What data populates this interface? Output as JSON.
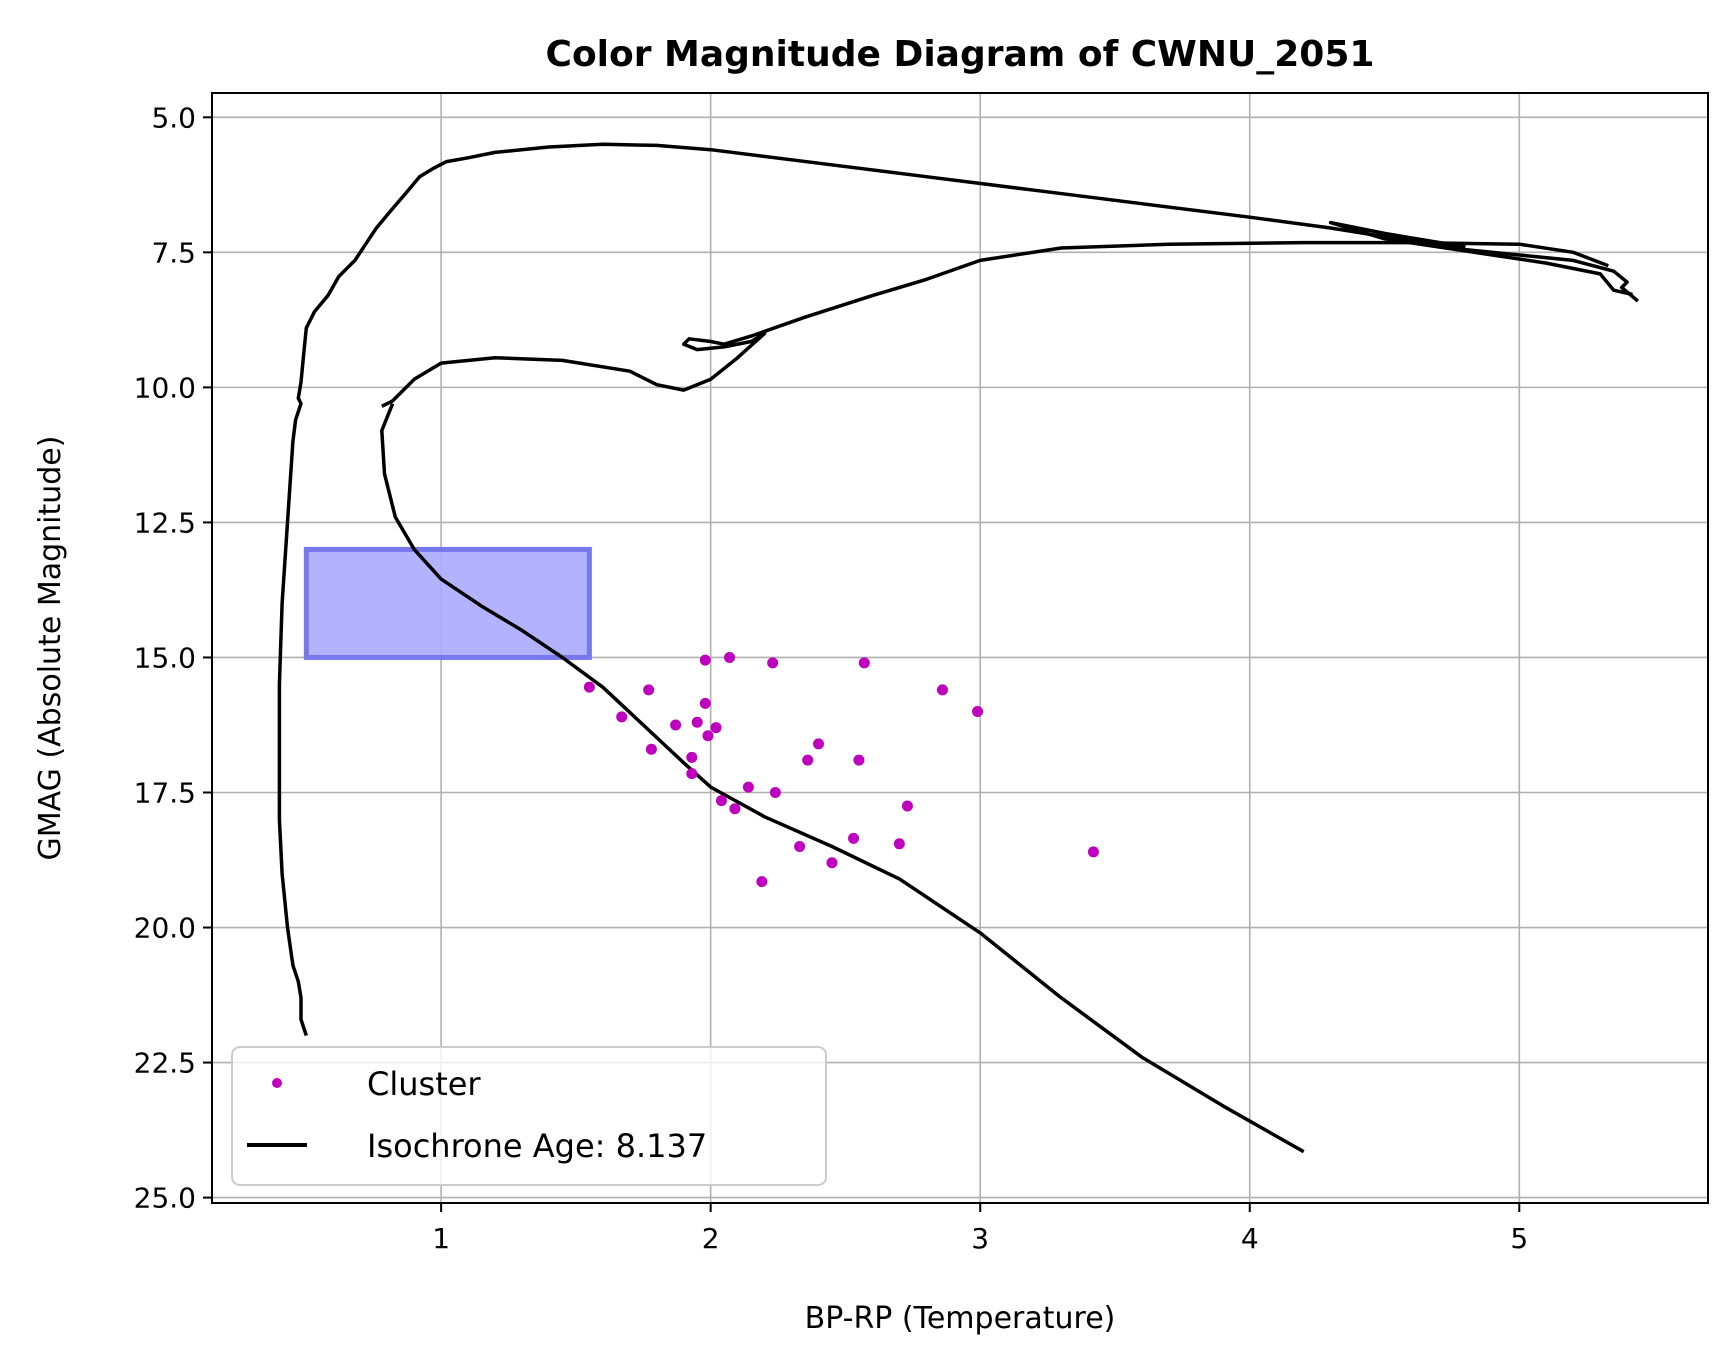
{
  "chart_data": {
    "type": "scatter",
    "title": "Color Magnitude Diagram of CWNU_2051",
    "xlabel": "BP-RP (Temperature)",
    "ylabel": "GMAG (Absolute Magnitude)",
    "xlim": [
      0.15,
      5.7
    ],
    "ylim": [
      25.1,
      4.55
    ],
    "y_inverted": true,
    "grid": true,
    "legend_position": "lower-left",
    "x_ticks": [
      1,
      2,
      3,
      4,
      5
    ],
    "y_ticks": [
      5.0,
      7.5,
      10.0,
      12.5,
      15.0,
      17.5,
      20.0,
      22.5,
      25.0
    ],
    "colors": {
      "cluster": "#bf00bf",
      "isochrone": "#000000",
      "region_fill": "#aaaaff",
      "region_edge": "#7777ee",
      "grid": "#b0b0b0"
    },
    "legend": [
      {
        "label": "Cluster",
        "marker": "dot",
        "color": "#bf00bf"
      },
      {
        "label": "Isochrone Age: 8.137",
        "marker": "line",
        "color": "#000000"
      }
    ],
    "region": {
      "x": [
        0.5,
        1.55
      ],
      "y": [
        13.0,
        15.0
      ]
    },
    "series": [
      {
        "name": "Cluster",
        "kind": "scatter",
        "points": [
          [
            1.55,
            15.55
          ],
          [
            1.67,
            16.1
          ],
          [
            1.77,
            15.6
          ],
          [
            1.78,
            16.7
          ],
          [
            1.87,
            16.25
          ],
          [
            1.93,
            16.85
          ],
          [
            1.93,
            17.15
          ],
          [
            1.95,
            16.2
          ],
          [
            1.98,
            15.85
          ],
          [
            1.98,
            15.05
          ],
          [
            1.99,
            16.45
          ],
          [
            2.02,
            16.3
          ],
          [
            2.04,
            17.65
          ],
          [
            2.07,
            15.0
          ],
          [
            2.09,
            17.8
          ],
          [
            2.14,
            17.4
          ],
          [
            2.19,
            19.15
          ],
          [
            2.23,
            15.1
          ],
          [
            2.24,
            17.5
          ],
          [
            2.33,
            18.5
          ],
          [
            2.36,
            16.9
          ],
          [
            2.4,
            16.6
          ],
          [
            2.45,
            18.8
          ],
          [
            2.53,
            18.35
          ],
          [
            2.55,
            16.9
          ],
          [
            2.57,
            15.1
          ],
          [
            2.7,
            18.45
          ],
          [
            2.73,
            17.75
          ],
          [
            2.86,
            15.6
          ],
          [
            2.99,
            16.0
          ],
          [
            3.42,
            18.6
          ]
        ]
      },
      {
        "name": "Isochrone Age: 8.137",
        "kind": "line",
        "segments": [
          [
            [
              0.5,
              22.0
            ],
            [
              0.48,
              21.7
            ],
            [
              0.48,
              21.3
            ],
            [
              0.47,
              21.0
            ],
            [
              0.45,
              20.7
            ],
            [
              0.43,
              20.0
            ],
            [
              0.41,
              19.0
            ],
            [
              0.4,
              18.0
            ],
            [
              0.4,
              17.0
            ],
            [
              0.4,
              15.5
            ],
            [
              0.41,
              14.0
            ],
            [
              0.43,
              12.5
            ],
            [
              0.45,
              11.0
            ],
            [
              0.46,
              10.6
            ],
            [
              0.48,
              10.3
            ],
            [
              0.47,
              10.2
            ],
            [
              0.48,
              9.9
            ],
            [
              0.49,
              9.4
            ],
            [
              0.5,
              8.9
            ],
            [
              0.53,
              8.6
            ],
            [
              0.58,
              8.3
            ],
            [
              0.62,
              7.95
            ],
            [
              0.64,
              7.85
            ],
            [
              0.68,
              7.65
            ],
            [
              0.72,
              7.35
            ],
            [
              0.76,
              7.05
            ],
            [
              0.81,
              6.75
            ],
            [
              0.87,
              6.4
            ],
            [
              0.92,
              6.1
            ],
            [
              0.97,
              5.95
            ],
            [
              1.02,
              5.82
            ],
            [
              1.1,
              5.75
            ],
            [
              1.2,
              5.65
            ],
            [
              1.4,
              5.55
            ],
            [
              1.6,
              5.5
            ],
            [
              1.8,
              5.52
            ],
            [
              2.0,
              5.6
            ],
            [
              2.4,
              5.85
            ],
            [
              2.8,
              6.1
            ],
            [
              3.2,
              6.35
            ],
            [
              3.6,
              6.6
            ],
            [
              4.0,
              6.85
            ],
            [
              4.3,
              7.05
            ],
            [
              4.55,
              7.25
            ],
            [
              4.8,
              7.45
            ],
            [
              5.0,
              7.55
            ],
            [
              5.2,
              7.65
            ],
            [
              5.35,
              7.85
            ],
            [
              5.4,
              8.05
            ],
            [
              5.38,
              8.15
            ],
            [
              5.44,
              8.4
            ]
          ],
          [
            [
              4.8,
              7.4
            ],
            [
              4.5,
              7.15
            ],
            [
              4.3,
              6.95
            ],
            [
              4.5,
              7.25
            ],
            [
              4.9,
              7.55
            ],
            [
              5.1,
              7.7
            ],
            [
              5.3,
              7.9
            ],
            [
              5.35,
              8.2
            ],
            [
              5.42,
              8.28
            ]
          ],
          [
            [
              0.78,
              10.35
            ],
            [
              0.82,
              10.25
            ],
            [
              0.9,
              9.85
            ],
            [
              1.0,
              9.55
            ],
            [
              1.2,
              9.45
            ],
            [
              1.45,
              9.5
            ],
            [
              1.7,
              9.7
            ],
            [
              1.8,
              9.95
            ],
            [
              1.9,
              10.05
            ],
            [
              2.0,
              9.85
            ],
            [
              2.1,
              9.45
            ],
            [
              2.2,
              9.0
            ],
            [
              2.15,
              9.15
            ],
            [
              2.05,
              9.25
            ],
            [
              1.95,
              9.3
            ],
            [
              1.9,
              9.2
            ],
            [
              1.92,
              9.1
            ],
            [
              2.0,
              9.15
            ],
            [
              2.05,
              9.2
            ],
            [
              2.15,
              9.05
            ],
            [
              2.35,
              8.7
            ],
            [
              2.6,
              8.3
            ],
            [
              2.8,
              8.0
            ],
            [
              3.0,
              7.65
            ],
            [
              3.3,
              7.42
            ],
            [
              3.7,
              7.35
            ],
            [
              4.2,
              7.32
            ],
            [
              4.6,
              7.32
            ],
            [
              5.0,
              7.35
            ],
            [
              5.2,
              7.5
            ],
            [
              5.33,
              7.75
            ]
          ],
          [
            [
              0.82,
              10.3
            ],
            [
              0.78,
              10.8
            ],
            [
              0.79,
              11.6
            ],
            [
              0.83,
              12.4
            ],
            [
              0.9,
              13.0
            ],
            [
              1.0,
              13.55
            ],
            [
              1.15,
              14.05
            ],
            [
              1.3,
              14.5
            ],
            [
              1.45,
              15.0
            ],
            [
              1.6,
              15.55
            ],
            [
              1.75,
              16.25
            ],
            [
              1.9,
              16.95
            ],
            [
              2.0,
              17.4
            ],
            [
              2.2,
              17.95
            ],
            [
              2.45,
              18.5
            ],
            [
              2.7,
              19.1
            ],
            [
              3.0,
              20.1
            ],
            [
              3.3,
              21.3
            ],
            [
              3.6,
              22.4
            ],
            [
              3.9,
              23.3
            ],
            [
              4.2,
              24.15
            ]
          ]
        ]
      }
    ]
  }
}
